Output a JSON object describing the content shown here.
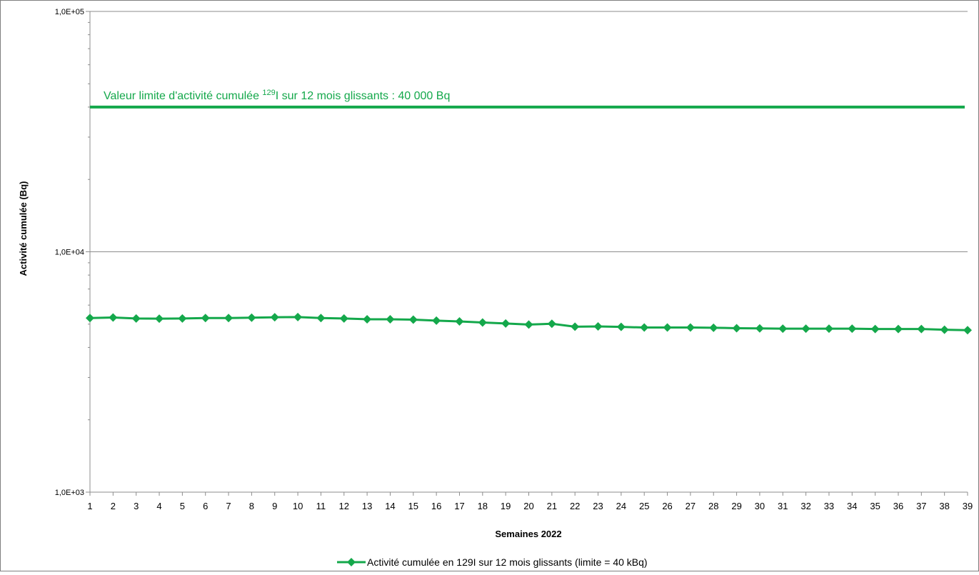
{
  "chart_data": {
    "type": "line",
    "title": "",
    "xlabel": "Semaines 2022",
    "ylabel": "Activité cumulée (Bq)",
    "yscale": "log",
    "ylim": [
      1000,
      100000
    ],
    "yticks": [
      1000,
      10000,
      100000
    ],
    "ytick_labels": [
      "1,0E+03",
      "1,0E+04",
      "1,0E+05"
    ],
    "x": [
      1,
      2,
      3,
      4,
      5,
      6,
      7,
      8,
      9,
      10,
      11,
      12,
      13,
      14,
      15,
      16,
      17,
      18,
      19,
      20,
      21,
      22,
      23,
      24,
      25,
      26,
      27,
      28,
      29,
      30,
      31,
      32,
      33,
      34,
      35,
      36,
      37,
      38,
      39
    ],
    "series": [
      {
        "name": "Activité cumulée en 129I sur 12 mois glissants (limite = 40 kBq)",
        "color": "#14A84B",
        "marker": "diamond",
        "values": [
          5300,
          5330,
          5280,
          5270,
          5280,
          5300,
          5300,
          5320,
          5340,
          5350,
          5300,
          5280,
          5240,
          5240,
          5220,
          5170,
          5130,
          5080,
          5030,
          4980,
          5020,
          4880,
          4890,
          4870,
          4840,
          4840,
          4840,
          4830,
          4810,
          4800,
          4790,
          4790,
          4790,
          4790,
          4770,
          4770,
          4770,
          4740,
          4720
        ]
      }
    ],
    "reference_line": {
      "value": 40000,
      "color": "#14A84B",
      "label_prefix": "Valeur limite d'activité cumulée ",
      "label_superscript": "129",
      "label_suffix": "I sur 12 mois  glissants : 40 000 Bq"
    },
    "grid": "horizontal major",
    "legend_position": "bottom-center"
  }
}
